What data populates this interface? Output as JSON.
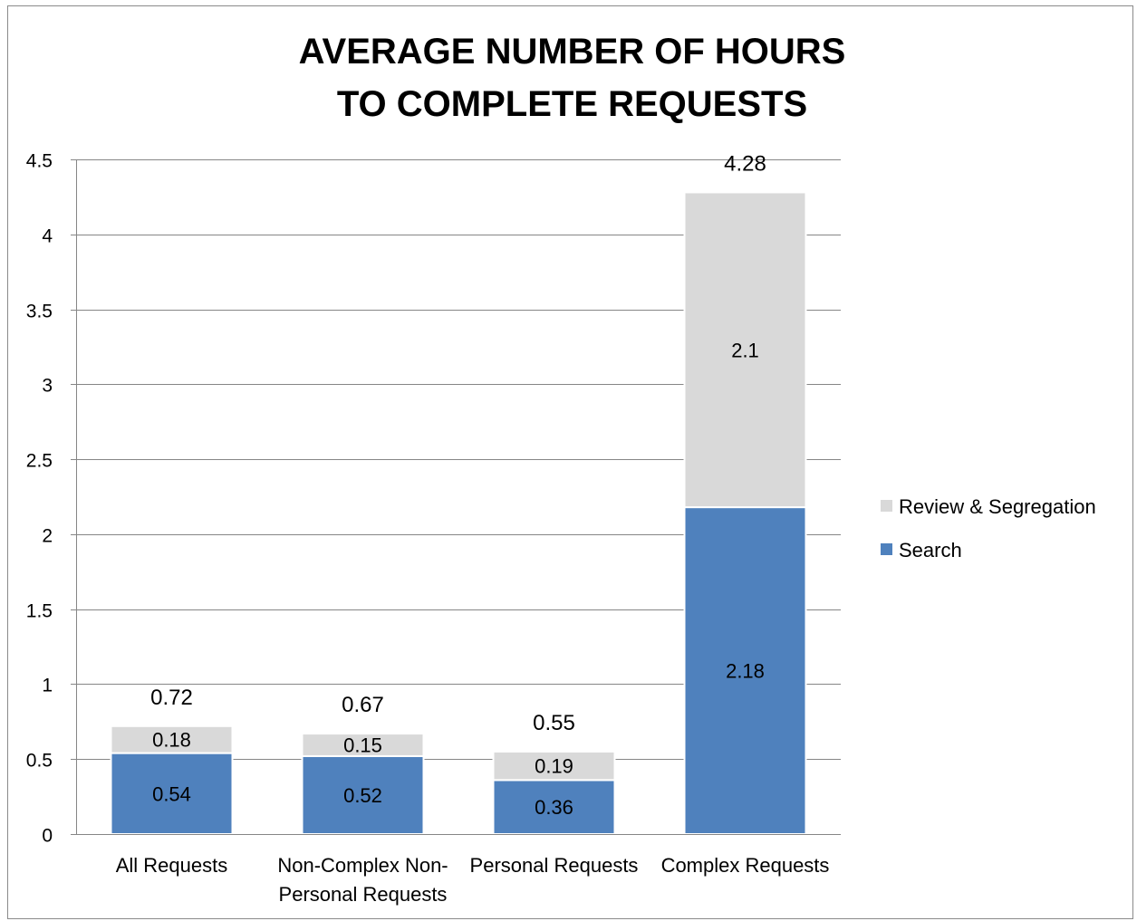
{
  "chart_data": {
    "type": "bar",
    "stacked": true,
    "title": [
      "AVERAGE NUMBER OF HOURS",
      "TO COMPLETE REQUESTS"
    ],
    "xlabel": "",
    "ylabel": "",
    "ylim": [
      0,
      4.5
    ],
    "yticks": [
      "0",
      "0.5",
      "1",
      "1.5",
      "2",
      "2.5",
      "3",
      "3.5",
      "4",
      "4.5"
    ],
    "ytick_values": [
      0,
      0.5,
      1,
      1.5,
      2,
      2.5,
      3,
      3.5,
      4,
      4.5
    ],
    "grid": true,
    "legend_position": "right",
    "categories": [
      [
        "All Requests"
      ],
      [
        "Non-Complex Non-",
        "Personal Requests"
      ],
      [
        "Personal Requests"
      ],
      [
        "Complex Requests"
      ]
    ],
    "series": [
      {
        "name": "Search",
        "color": "#4f81bd",
        "values": [
          0.54,
          0.52,
          0.36,
          2.18
        ],
        "labels": [
          "0.54",
          "0.52",
          "0.36",
          "2.18"
        ]
      },
      {
        "name": "Review & Segregation",
        "color": "#d9d9d9",
        "values": [
          0.18,
          0.15,
          0.19,
          2.1
        ],
        "labels": [
          "0.18",
          "0.15",
          "0.19",
          "2.1"
        ]
      }
    ],
    "totals": [
      0.72,
      0.67,
      0.55,
      4.28
    ],
    "total_labels": [
      "0.72",
      "0.67",
      "0.55",
      "4.28"
    ],
    "legend": [
      {
        "name": "Review & Segregation",
        "color": "#d9d9d9"
      },
      {
        "name": "Search",
        "color": "#4f81bd"
      }
    ]
  }
}
